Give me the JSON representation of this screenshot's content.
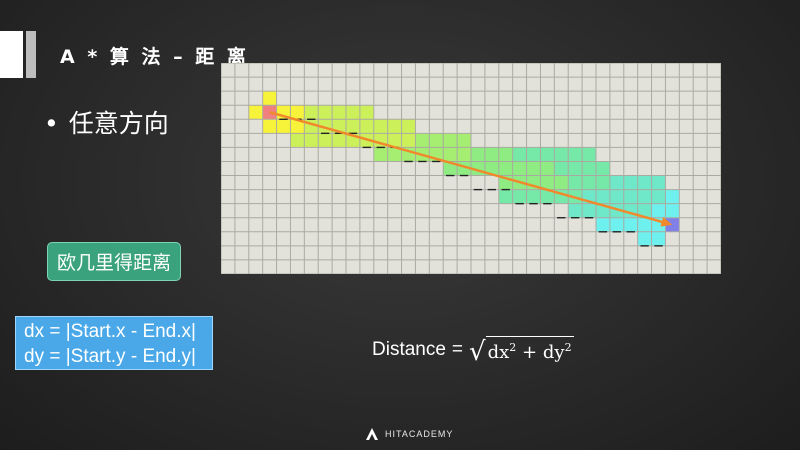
{
  "slide": {
    "title": "A * 算 法 – 距 离",
    "bullet": "任意方向",
    "euclid_button": "欧几里得距离",
    "formula_lines": [
      "dx = |Start.x - End.x|",
      "dy = |Start.y - End.y|"
    ],
    "distance_label": "Distance",
    "distance_equals": "=",
    "radicand_dx": "dx",
    "radicand_plus": "+",
    "radicand_dy": "dy",
    "exponent": "2",
    "logo_text": "HITACADEMY"
  },
  "grid": {
    "columns": 36,
    "rows": 15,
    "start_cell": [
      3,
      3
    ],
    "end_cell": [
      32,
      11
    ],
    "colors": {
      "background": "#e3e2da",
      "line": "#aaaaa2",
      "start": "#f08080",
      "end": "#8080e8",
      "arrow": "#f0892c",
      "dash": "#222222"
    },
    "highlight_bands": [
      {
        "color": "#f6f33a",
        "cells": [
          [
            3,
            2
          ],
          [
            2,
            3
          ],
          [
            3,
            3
          ],
          [
            4,
            3
          ],
          [
            5,
            3
          ],
          [
            3,
            4
          ],
          [
            4,
            4
          ],
          [
            5,
            4
          ],
          [
            6,
            4
          ],
          [
            5,
            5
          ]
        ]
      },
      {
        "color": "#ccf05a",
        "cells": [
          [
            6,
            3
          ],
          [
            7,
            3
          ],
          [
            8,
            3
          ],
          [
            9,
            3
          ],
          [
            10,
            3
          ],
          [
            6,
            4
          ],
          [
            7,
            4
          ],
          [
            8,
            4
          ],
          [
            9,
            4
          ],
          [
            10,
            4
          ],
          [
            11,
            4
          ],
          [
            12,
            4
          ],
          [
            13,
            4
          ],
          [
            5,
            5
          ],
          [
            6,
            5
          ],
          [
            7,
            5
          ],
          [
            8,
            5
          ],
          [
            9,
            5
          ],
          [
            10,
            5
          ],
          [
            11,
            5
          ],
          [
            12,
            5
          ],
          [
            13,
            5
          ]
        ]
      },
      {
        "color": "#a6ee72",
        "cells": [
          [
            11,
            6
          ],
          [
            12,
            6
          ],
          [
            13,
            6
          ],
          [
            14,
            6
          ],
          [
            15,
            6
          ],
          [
            16,
            6
          ],
          [
            17,
            6
          ],
          [
            18,
            6
          ],
          [
            19,
            6
          ],
          [
            14,
            5
          ],
          [
            15,
            5
          ],
          [
            16,
            5
          ],
          [
            17,
            5
          ]
        ]
      },
      {
        "color": "#8eec82",
        "cells": [
          [
            16,
            7
          ],
          [
            17,
            7
          ],
          [
            18,
            7
          ],
          [
            19,
            7
          ],
          [
            20,
            7
          ],
          [
            21,
            7
          ],
          [
            22,
            7
          ],
          [
            23,
            7
          ],
          [
            20,
            8
          ],
          [
            21,
            8
          ],
          [
            22,
            8
          ],
          [
            23,
            8
          ],
          [
            24,
            8
          ],
          [
            18,
            6
          ],
          [
            19,
            6
          ],
          [
            20,
            6
          ]
        ]
      },
      {
        "color": "#76e8a8",
        "cells": [
          [
            21,
            6
          ],
          [
            22,
            6
          ],
          [
            23,
            6
          ],
          [
            24,
            6
          ],
          [
            25,
            6
          ],
          [
            26,
            6
          ],
          [
            24,
            7
          ],
          [
            25,
            7
          ],
          [
            26,
            7
          ],
          [
            27,
            7
          ],
          [
            25,
            8
          ],
          [
            26,
            8
          ],
          [
            27,
            8
          ],
          [
            28,
            8
          ],
          [
            20,
            9
          ],
          [
            21,
            9
          ],
          [
            22,
            9
          ],
          [
            23,
            9
          ],
          [
            24,
            9
          ],
          [
            25,
            9
          ]
        ]
      },
      {
        "color": "#6ee8c8",
        "cells": [
          [
            26,
            9
          ],
          [
            27,
            9
          ],
          [
            28,
            9
          ],
          [
            29,
            9
          ],
          [
            30,
            9
          ],
          [
            25,
            10
          ],
          [
            26,
            10
          ],
          [
            27,
            10
          ],
          [
            28,
            10
          ],
          [
            29,
            10
          ],
          [
            30,
            10
          ],
          [
            28,
            8
          ],
          [
            29,
            8
          ],
          [
            30,
            8
          ],
          [
            31,
            8
          ],
          [
            31,
            9
          ]
        ]
      },
      {
        "color": "#6ef0ee",
        "cells": [
          [
            27,
            11
          ],
          [
            28,
            11
          ],
          [
            29,
            11
          ],
          [
            30,
            11
          ],
          [
            31,
            11
          ],
          [
            30,
            12
          ],
          [
            31,
            12
          ],
          [
            32,
            10
          ],
          [
            32,
            9
          ],
          [
            31,
            10
          ]
        ]
      }
    ],
    "staircase_rows": [
      [
        4,
        3,
        6
      ],
      [
        7,
        4,
        9
      ],
      [
        10,
        5,
        12
      ],
      [
        13,
        6,
        15
      ],
      [
        16,
        7,
        17
      ],
      [
        18,
        8,
        20
      ],
      [
        21,
        9,
        23
      ],
      [
        24,
        10,
        26
      ],
      [
        27,
        11,
        29
      ],
      [
        30,
        12,
        31
      ]
    ]
  }
}
